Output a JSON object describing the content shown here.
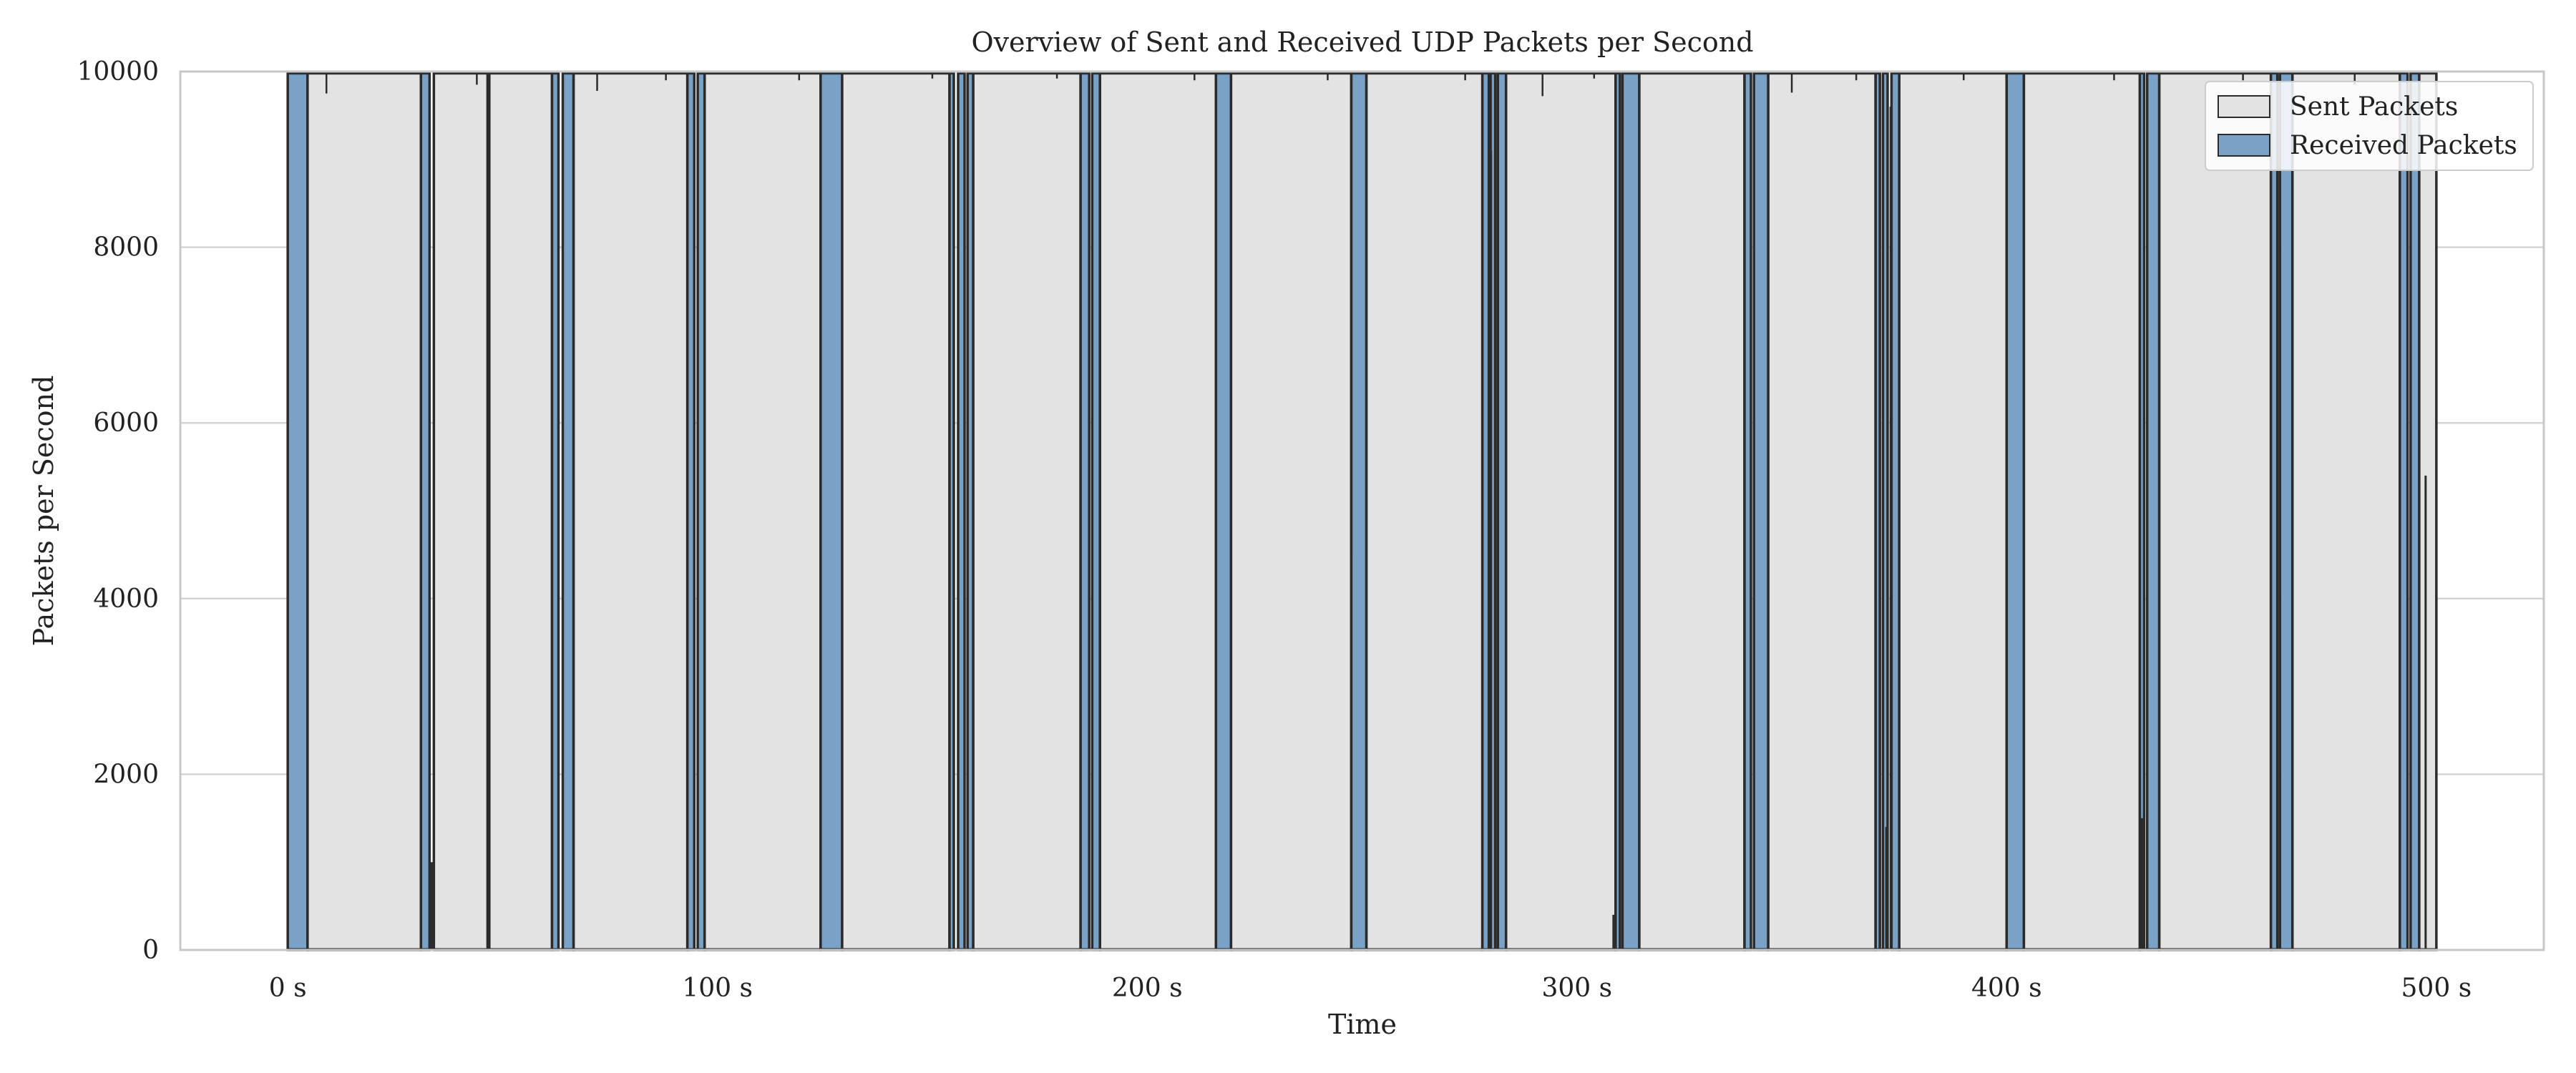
{
  "chart_data": {
    "type": "area",
    "title": "Overview of Sent and Received UDP Packets per Second",
    "xlabel": "Time",
    "ylabel": "Packets per Second",
    "xlim": [
      -25,
      525
    ],
    "ylim": [
      0,
      10000
    ],
    "x_ticks": [
      0,
      100,
      200,
      300,
      400,
      500
    ],
    "x_tick_labels": [
      "0 s",
      "100 s",
      "200 s",
      "300 s",
      "400 s",
      "500 s"
    ],
    "y_ticks": [
      0,
      2000,
      4000,
      6000,
      8000,
      10000
    ],
    "y_tick_labels": [
      "0",
      "2000",
      "4000",
      "6000",
      "8000",
      "10000"
    ],
    "grid": true,
    "legend_position": "top-right",
    "colors": {
      "sent_fill": "#e3e3e3",
      "received_fill": "#7aa2c6",
      "edge": "#2b2b2b",
      "grid": "#d4d4d4",
      "axes_edge": "#c8c8c8",
      "background": "#ffffff"
    },
    "series": [
      {
        "name": "Sent Packets",
        "color": "#e3e3e3",
        "segments": [
          {
            "start": 4.6,
            "end": 31.0,
            "value": 9980
          },
          {
            "start": 34.0,
            "end": 46.5,
            "value": 9980
          },
          {
            "start": 46.9,
            "end": 61.5,
            "value": 9980
          },
          {
            "start": 66.5,
            "end": 93.0,
            "value": 9980
          },
          {
            "start": 97.0,
            "end": 124.0,
            "value": 9980
          },
          {
            "start": 129.0,
            "end": 154.0,
            "value": 9980
          },
          {
            "start": 159.5,
            "end": 184.5,
            "value": 9980
          },
          {
            "start": 189.0,
            "end": 216.0,
            "value": 9980
          },
          {
            "start": 219.5,
            "end": 247.5,
            "value": 9980
          },
          {
            "start": 251.0,
            "end": 278.0,
            "value": 9980
          },
          {
            "start": 283.5,
            "end": 309.0,
            "value": 9980
          },
          {
            "start": 314.5,
            "end": 339.0,
            "value": 9980
          },
          {
            "start": 344.5,
            "end": 369.5,
            "value": 9980
          },
          {
            "start": 375.0,
            "end": 400.0,
            "value": 9980
          },
          {
            "start": 404.0,
            "end": 431.0,
            "value": 9980
          },
          {
            "start": 435.5,
            "end": 461.5,
            "value": 9980
          },
          {
            "start": 466.5,
            "end": 491.5,
            "value": 9980
          },
          {
            "start": 496.0,
            "end": 500.0,
            "value": 9980
          }
        ],
        "dips": [
          {
            "x": 9.0,
            "value": 9750
          },
          {
            "x": 44.0,
            "value": 9850
          },
          {
            "x": 72.0,
            "value": 9780
          },
          {
            "x": 88.0,
            "value": 9900
          },
          {
            "x": 119.0,
            "value": 9900
          },
          {
            "x": 150.0,
            "value": 9920
          },
          {
            "x": 179.0,
            "value": 9920
          },
          {
            "x": 211.0,
            "value": 9900
          },
          {
            "x": 242.0,
            "value": 9900
          },
          {
            "x": 274.0,
            "value": 9900
          },
          {
            "x": 292.0,
            "value": 9720
          },
          {
            "x": 304.0,
            "value": 9920
          },
          {
            "x": 350.0,
            "value": 9760
          },
          {
            "x": 365.0,
            "value": 9900
          },
          {
            "x": 390.0,
            "value": 9900
          },
          {
            "x": 425.0,
            "value": 9900
          },
          {
            "x": 455.0,
            "value": 9900
          },
          {
            "x": 481.0,
            "value": 9850
          }
        ]
      },
      {
        "name": "Received Packets",
        "color": "#7aa2c6",
        "segments": [
          {
            "start": 0.0,
            "end": 4.6,
            "value": 9980
          },
          {
            "start": 31.0,
            "end": 33.0,
            "value": 9980
          },
          {
            "start": 61.5,
            "end": 63.0,
            "value": 9980
          },
          {
            "start": 64.0,
            "end": 66.5,
            "value": 9980
          },
          {
            "start": 93.0,
            "end": 94.6,
            "value": 9980
          },
          {
            "start": 95.4,
            "end": 97.0,
            "value": 9980
          },
          {
            "start": 124.0,
            "end": 129.0,
            "value": 9980
          },
          {
            "start": 154.0,
            "end": 155.0,
            "value": 9980
          },
          {
            "start": 156.0,
            "end": 157.5,
            "value": 9980
          },
          {
            "start": 158.2,
            "end": 159.5,
            "value": 9980
          },
          {
            "start": 184.5,
            "end": 186.5,
            "value": 9980
          },
          {
            "start": 187.2,
            "end": 189.0,
            "value": 9980
          },
          {
            "start": 216.0,
            "end": 219.5,
            "value": 9980
          },
          {
            "start": 247.5,
            "end": 251.0,
            "value": 9980
          },
          {
            "start": 278.0,
            "end": 279.5,
            "value": 9980
          },
          {
            "start": 279.9,
            "end": 281.0,
            "value": 9980
          },
          {
            "start": 281.6,
            "end": 283.5,
            "value": 9980
          },
          {
            "start": 309.0,
            "end": 310.0,
            "value": 9980
          },
          {
            "start": 310.6,
            "end": 314.5,
            "value": 9980
          },
          {
            "start": 339.0,
            "end": 340.5,
            "value": 9980
          },
          {
            "start": 341.2,
            "end": 344.5,
            "value": 9980
          },
          {
            "start": 369.5,
            "end": 370.5,
            "value": 9980
          },
          {
            "start": 371.2,
            "end": 372.3,
            "value": 9980
          },
          {
            "start": 373.2,
            "end": 375.0,
            "value": 9980
          },
          {
            "start": 400.0,
            "end": 404.0,
            "value": 9980
          },
          {
            "start": 431.0,
            "end": 432.0,
            "value": 9980
          },
          {
            "start": 432.7,
            "end": 435.5,
            "value": 9980
          },
          {
            "start": 461.5,
            "end": 463.0,
            "value": 9980
          },
          {
            "start": 463.6,
            "end": 466.5,
            "value": 9980
          },
          {
            "start": 491.5,
            "end": 493.3,
            "value": 9980
          },
          {
            "start": 494.0,
            "end": 496.0,
            "value": 9980
          }
        ],
        "spikes": [
          {
            "x": 33.5,
            "value": 1000
          },
          {
            "x": 247.5,
            "value": 4500
          },
          {
            "x": 280.0,
            "value": 9100
          },
          {
            "x": 308.5,
            "value": 400
          },
          {
            "x": 372.0,
            "value": 1400
          },
          {
            "x": 373.0,
            "value": 9600
          },
          {
            "x": 431.5,
            "value": 1500
          },
          {
            "x": 497.5,
            "value": 5400
          }
        ]
      }
    ]
  }
}
